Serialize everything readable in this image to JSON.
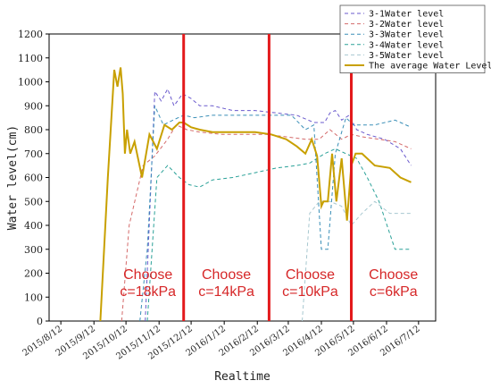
{
  "chart_data": {
    "type": "line",
    "xlabel": "Realtime",
    "ylabel": "Water level(cm)",
    "ylim": [
      0,
      1200
    ],
    "yticks": [
      0,
      100,
      200,
      300,
      400,
      500,
      600,
      700,
      800,
      900,
      1000,
      1100,
      1200
    ],
    "xticks": [
      "2015/8/12",
      "2015/9/12",
      "2015/10/12",
      "2015/11/12",
      "2015/12/12",
      "2016/1/12",
      "2016/2/12",
      "2016/3/12",
      "2016/4/12",
      "2016/5/12",
      "2016/6/12",
      "2016/7/12"
    ],
    "legend_position": "top-right",
    "dividers": [
      "2015/12/5",
      "2016/2/23",
      "2016/5/10"
    ],
    "regions": [
      {
        "line1": "Choose",
        "line2": "c=18kPa"
      },
      {
        "line1": "Choose",
        "line2": "c=14kPa"
      },
      {
        "line1": "Choose",
        "line2": "c=10kPa"
      },
      {
        "line1": "Choose",
        "line2": "c=6kPa"
      }
    ],
    "series": [
      {
        "name": "3-1Water level",
        "color": "#6a5acd",
        "dash": "4,3",
        "x": [
          "2015/10/30",
          "2015/11/8",
          "2015/11/14",
          "2015/11/20",
          "2015/11/26",
          "2015/12/4",
          "2015/12/12",
          "2015/12/20",
          "2016/1/1",
          "2016/1/20",
          "2016/2/10",
          "2016/3/1",
          "2016/3/20",
          "2016/4/5",
          "2016/4/15",
          "2016/4/20",
          "2016/4/25",
          "2016/5/1",
          "2016/5/8",
          "2016/5/15",
          "2016/5/25",
          "2016/6/10",
          "2016/6/25",
          "2016/7/5"
        ],
        "values": [
          0,
          960,
          920,
          970,
          900,
          950,
          930,
          900,
          900,
          880,
          880,
          870,
          860,
          830,
          830,
          870,
          880,
          840,
          860,
          800,
          780,
          760,
          720,
          650
        ]
      },
      {
        "name": "3-2Water level",
        "color": "#d46a6a",
        "dash": "4,3",
        "x": [
          "2015/10/8",
          "2015/10/15",
          "2015/10/28",
          "2015/11/8",
          "2015/11/20",
          "2015/11/28",
          "2015/12/8",
          "2015/12/20",
          "2016/1/10",
          "2016/2/1",
          "2016/2/20",
          "2016/3/10",
          "2016/3/28",
          "2016/4/10",
          "2016/4/20",
          "2016/5/1",
          "2016/5/10",
          "2016/5/20",
          "2016/6/5",
          "2016/6/20",
          "2016/7/5"
        ],
        "values": [
          0,
          400,
          650,
          690,
          760,
          820,
          800,
          790,
          780,
          780,
          780,
          770,
          760,
          760,
          800,
          760,
          780,
          770,
          760,
          750,
          720
        ]
      },
      {
        "name": "3-3Water level",
        "color": "#3a8fb7",
        "dash": "4,3",
        "x": [
          "2015/10/25",
          "2015/11/1",
          "2015/11/8",
          "2015/11/16",
          "2015/11/25",
          "2015/12/5",
          "2015/12/15",
          "2016/1/1",
          "2016/1/20",
          "2016/2/10",
          "2016/3/1",
          "2016/3/15",
          "2016/3/28",
          "2016/4/5",
          "2016/4/12",
          "2016/4/18",
          "2016/4/25",
          "2016/5/5",
          "2016/5/12",
          "2016/5/20",
          "2016/6/1",
          "2016/6/20",
          "2016/7/5"
        ],
        "values": [
          0,
          300,
          900,
          820,
          840,
          860,
          850,
          860,
          860,
          860,
          860,
          860,
          800,
          820,
          300,
          300,
          700,
          850,
          820,
          820,
          820,
          840,
          810
        ]
      },
      {
        "name": "3-4Water level",
        "color": "#2aa198",
        "dash": "4,3",
        "x": [
          "2015/11/1",
          "2015/11/10",
          "2015/11/20",
          "2015/12/1",
          "2015/12/10",
          "2015/12/20",
          "2016/1/1",
          "2016/1/20",
          "2016/2/10",
          "2016/3/1",
          "2016/3/20",
          "2016/4/1",
          "2016/4/15",
          "2016/4/25",
          "2016/5/5",
          "2016/5/15",
          "2016/5/25",
          "2016/6/5",
          "2016/6/20",
          "2016/7/5"
        ],
        "values": [
          0,
          600,
          650,
          600,
          570,
          560,
          590,
          600,
          620,
          640,
          650,
          660,
          700,
          720,
          700,
          680,
          600,
          500,
          300,
          300
        ]
      },
      {
        "name": "3-5Water level",
        "color": "#a8c8d0",
        "dash": "4,3",
        "x": [
          "2016/3/25",
          "2016/4/1",
          "2016/4/10",
          "2016/4/20",
          "2016/5/1",
          "2016/5/10",
          "2016/5/20",
          "2016/6/1",
          "2016/6/15",
          "2016/7/5"
        ],
        "values": [
          0,
          450,
          500,
          500,
          480,
          400,
          450,
          500,
          450,
          450
        ]
      },
      {
        "name": "The average Water Level",
        "color": "#c8a000",
        "dash": "",
        "x": [
          "2015/9/18",
          "2015/9/25",
          "2015/10/1",
          "2015/10/4",
          "2015/10/7",
          "2015/10/9",
          "2015/10/11",
          "2015/10/13",
          "2015/10/16",
          "2015/10/20",
          "2015/10/27",
          "2015/11/3",
          "2015/11/10",
          "2015/11/17",
          "2015/11/24",
          "2015/12/1",
          "2015/12/5",
          "2015/12/12",
          "2015/12/20",
          "2016/1/1",
          "2016/1/20",
          "2016/2/10",
          "2016/2/25",
          "2016/3/10",
          "2016/3/20",
          "2016/3/28",
          "2016/4/3",
          "2016/4/8",
          "2016/4/12",
          "2016/4/14",
          "2016/4/18",
          "2016/4/22",
          "2016/4/26",
          "2016/5/1",
          "2016/5/6",
          "2016/5/10",
          "2016/5/14",
          "2016/5/20",
          "2016/6/1",
          "2016/6/15",
          "2016/6/25",
          "2016/7/5"
        ],
        "values": [
          0,
          600,
          1050,
          980,
          1060,
          950,
          700,
          800,
          700,
          750,
          600,
          780,
          720,
          820,
          800,
          830,
          830,
          810,
          800,
          790,
          790,
          790,
          780,
          760,
          730,
          700,
          760,
          690,
          480,
          500,
          500,
          700,
          500,
          680,
          420,
          650,
          700,
          700,
          650,
          640,
          600,
          580
        ]
      }
    ]
  }
}
